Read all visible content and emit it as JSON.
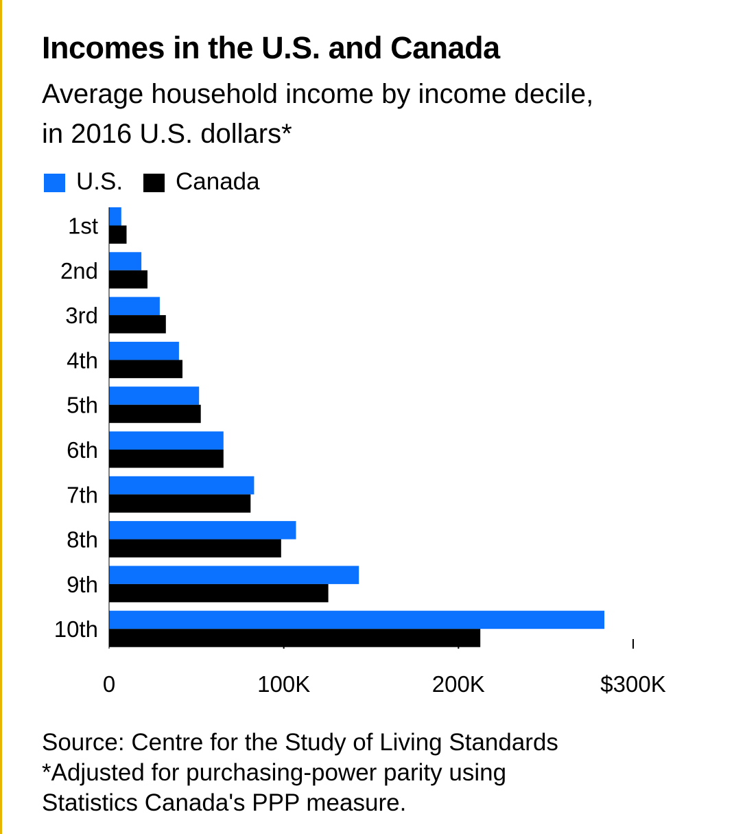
{
  "title": "Incomes in the U.S. and Canada",
  "subtitle_line1": "Average household income by income decile,",
  "subtitle_line2": "in 2016 U.S. dollars*",
  "source": "Source: Centre for the Study of Living Standards",
  "footnote_line1": "*Adjusted for purchasing-power parity using",
  "footnote_line2": "Statistics Canada's PPP measure.",
  "colors": {
    "us": "#0a72ff",
    "canada": "#000000",
    "edge": "#e8b400"
  },
  "legend": [
    {
      "label": "U.S.",
      "color": "#0a72ff"
    },
    {
      "label": "Canada",
      "color": "#000000"
    }
  ],
  "chart_data": {
    "type": "bar",
    "orientation": "horizontal",
    "categories": [
      "1st",
      "2nd",
      "3rd",
      "4th",
      "5th",
      "6th",
      "7th",
      "8th",
      "9th",
      "10th"
    ],
    "series": [
      {
        "name": "U.S.",
        "color": "#0a72ff",
        "values": [
          7000,
          18500,
          29000,
          40000,
          51500,
          65500,
          83000,
          107000,
          143000,
          283500
        ]
      },
      {
        "name": "Canada",
        "color": "#000000",
        "values": [
          10000,
          22000,
          32500,
          42000,
          52500,
          65500,
          81000,
          98500,
          125500,
          212500
        ]
      }
    ],
    "xticks": [
      0,
      100000,
      200000,
      300000
    ],
    "xtick_labels": [
      "0",
      "100K",
      "200K",
      "$300K"
    ],
    "xlim": [
      0,
      300000
    ],
    "grid": false,
    "legend_position": "top-left"
  }
}
